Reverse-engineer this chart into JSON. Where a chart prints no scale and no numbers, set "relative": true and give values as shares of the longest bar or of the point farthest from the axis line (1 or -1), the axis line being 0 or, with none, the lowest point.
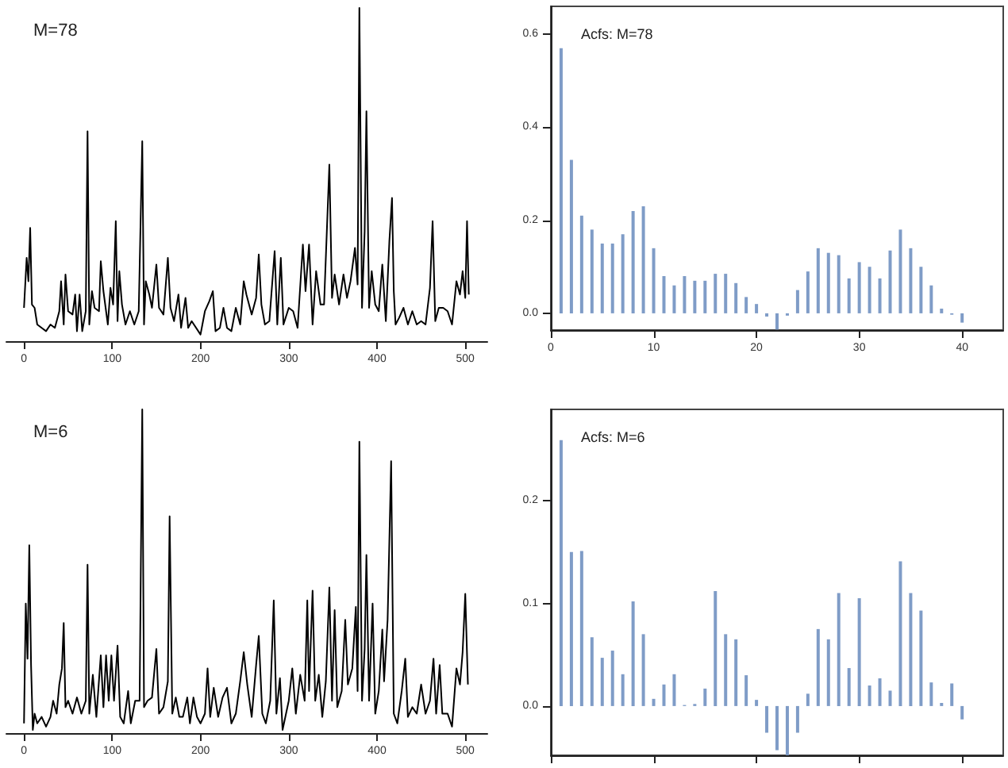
{
  "chart_data": [
    {
      "type": "line",
      "title": "M=78",
      "relative": true,
      "color": "#000000",
      "tick_labels": "x",
      "xlim": [
        -20,
        525
      ],
      "xticks": [
        0,
        100,
        200,
        300,
        400,
        500
      ],
      "x": [
        0,
        3,
        5,
        7,
        9,
        12,
        15,
        20,
        25,
        30,
        35,
        40,
        42,
        45,
        47,
        50,
        55,
        58,
        60,
        63,
        66,
        70,
        72,
        74,
        77,
        80,
        85,
        87,
        90,
        95,
        98,
        101,
        104,
        106,
        108,
        111,
        115,
        120,
        125,
        130,
        134,
        136,
        138,
        142,
        145,
        150,
        153,
        158,
        163,
        166,
        170,
        175,
        178,
        183,
        186,
        190,
        200,
        205,
        210,
        214,
        217,
        222,
        226,
        230,
        235,
        240,
        245,
        249,
        252,
        258,
        263,
        266,
        269,
        273,
        278,
        284,
        287,
        291,
        294,
        300,
        305,
        310,
        316,
        319,
        323,
        327,
        331,
        336,
        340,
        346,
        349,
        352,
        357,
        362,
        366,
        370,
        375,
        378,
        380,
        383,
        386,
        388,
        391,
        394,
        398,
        402,
        406,
        410,
        414,
        417,
        419,
        421,
        425,
        430,
        435,
        440,
        445,
        450,
        455,
        460,
        463,
        466,
        470,
        475,
        480,
        485,
        490,
        494,
        497,
        500,
        502,
        504
      ],
      "values": [
        0.1,
        0.25,
        0.18,
        0.34,
        0.11,
        0.1,
        0.05,
        0.04,
        0.03,
        0.05,
        0.04,
        0.09,
        0.18,
        0.05,
        0.2,
        0.09,
        0.08,
        0.14,
        0.03,
        0.14,
        0.03,
        0.09,
        0.63,
        0.05,
        0.15,
        0.1,
        0.09,
        0.24,
        0.15,
        0.05,
        0.16,
        0.11,
        0.36,
        0.06,
        0.21,
        0.11,
        0.05,
        0.09,
        0.05,
        0.09,
        0.6,
        0.05,
        0.18,
        0.14,
        0.1,
        0.23,
        0.1,
        0.08,
        0.25,
        0.1,
        0.06,
        0.14,
        0.04,
        0.13,
        0.04,
        0.06,
        0.02,
        0.09,
        0.12,
        0.15,
        0.03,
        0.04,
        0.1,
        0.04,
        0.03,
        0.1,
        0.05,
        0.18,
        0.14,
        0.08,
        0.13,
        0.26,
        0.11,
        0.05,
        0.06,
        0.27,
        0.05,
        0.25,
        0.05,
        0.1,
        0.09,
        0.04,
        0.29,
        0.15,
        0.29,
        0.05,
        0.21,
        0.11,
        0.11,
        0.53,
        0.13,
        0.2,
        0.11,
        0.2,
        0.13,
        0.18,
        0.28,
        0.17,
        1,
        0.1,
        0.33,
        0.69,
        0.1,
        0.21,
        0.11,
        0.09,
        0.23,
        0.06,
        0.3,
        0.43,
        0.15,
        0.05,
        0.07,
        0.1,
        0.05,
        0.09,
        0.05,
        0.06,
        0.05,
        0.16,
        0.36,
        0.06,
        0.1,
        0.1,
        0.09,
        0.05,
        0.18,
        0.14,
        0.21,
        0.13,
        0.36,
        0.14
      ]
    },
    {
      "type": "bar",
      "title": "Acfs: M=78",
      "color": "#7f9cc7",
      "xlim": [
        0,
        44
      ],
      "xticks": [
        0,
        10,
        20,
        30,
        40
      ],
      "ylim": [
        -0.036,
        0.66
      ],
      "yticks": [
        {
          "value": 0,
          "label": "0.0"
        },
        0.2,
        0.4,
        0.6
      ],
      "x": [
        1,
        2,
        3,
        4,
        5,
        6,
        7,
        8,
        9,
        10,
        11,
        12,
        13,
        14,
        15,
        16,
        17,
        18,
        19,
        20,
        21,
        22,
        23,
        24,
        25,
        26,
        27,
        28,
        29,
        30,
        31,
        32,
        33,
        34,
        35,
        36,
        37,
        38,
        39,
        40
      ],
      "values": [
        0.57,
        0.33,
        0.21,
        0.18,
        0.15,
        0.15,
        0.17,
        0.22,
        0.23,
        0.14,
        0.08,
        0.06,
        0.08,
        0.07,
        0.07,
        0.085,
        0.085,
        0.065,
        0.035,
        0.02,
        -0.007,
        -0.035,
        -0.005,
        0.05,
        0.09,
        0.14,
        0.13,
        0.125,
        0.075,
        0.11,
        0.1,
        0.075,
        0.135,
        0.18,
        0.14,
        0.1,
        0.06,
        0.01,
        -0.003,
        -0.02
      ]
    },
    {
      "type": "line",
      "title": "M=6",
      "relative": true,
      "color": "#000000",
      "tick_labels": "x",
      "xlim": [
        -20,
        525
      ],
      "xticks": [
        0,
        100,
        200,
        300,
        400,
        500
      ],
      "x": [
        0,
        2,
        4,
        6,
        8,
        10,
        12,
        15,
        20,
        25,
        30,
        33,
        37,
        40,
        43,
        45,
        47,
        50,
        55,
        60,
        65,
        70,
        72,
        74,
        78,
        82,
        87,
        90,
        93,
        96,
        99,
        102,
        106,
        109,
        113,
        118,
        121,
        126,
        131,
        134,
        136,
        140,
        145,
        150,
        153,
        158,
        163,
        165,
        168,
        172,
        176,
        180,
        185,
        188,
        192,
        196,
        200,
        205,
        208,
        211,
        215,
        220,
        225,
        230,
        235,
        240,
        245,
        249,
        253,
        258,
        263,
        266,
        270,
        274,
        279,
        283,
        286,
        290,
        293,
        300,
        304,
        308,
        313,
        318,
        321,
        323,
        327,
        330,
        334,
        338,
        342,
        346,
        349,
        352,
        355,
        360,
        364,
        367,
        372,
        376,
        378,
        380,
        383,
        386,
        388,
        391,
        395,
        398,
        402,
        406,
        408,
        412,
        416,
        419,
        423,
        428,
        432,
        435,
        440,
        445,
        450,
        455,
        460,
        464,
        467,
        471,
        474,
        480,
        485,
        490,
        494,
        497,
        500,
        503
      ],
      "values": [
        0.03,
        0.4,
        0.23,
        0.58,
        0.21,
        0.01,
        0.06,
        0.03,
        0.05,
        0.02,
        0.05,
        0.1,
        0.06,
        0.15,
        0.2,
        0.34,
        0.08,
        0.1,
        0.06,
        0.11,
        0.06,
        0.1,
        0.52,
        0.06,
        0.18,
        0.05,
        0.24,
        0.08,
        0.24,
        0.1,
        0.24,
        0.1,
        0.27,
        0.05,
        0.03,
        0.13,
        0.03,
        0.1,
        0.1,
        1,
        0.08,
        0.1,
        0.11,
        0.26,
        0.06,
        0.08,
        0.16,
        0.67,
        0.06,
        0.11,
        0.05,
        0.05,
        0.11,
        0.03,
        0.11,
        0.05,
        0.03,
        0.06,
        0.2,
        0.05,
        0.14,
        0.05,
        0.11,
        0.14,
        0.03,
        0.06,
        0.16,
        0.25,
        0.15,
        0.05,
        0.21,
        0.3,
        0.06,
        0.03,
        0.1,
        0.41,
        0.06,
        0.17,
        0.01,
        0.1,
        0.2,
        0.06,
        0.18,
        0.1,
        0.41,
        0.13,
        0.44,
        0.1,
        0.18,
        0.05,
        0.16,
        0.45,
        0.1,
        0.38,
        0.08,
        0.13,
        0.35,
        0.15,
        0.2,
        0.39,
        0.13,
        0.9,
        0.1,
        0.26,
        0.55,
        0.1,
        0.4,
        0.06,
        0.13,
        0.32,
        0.16,
        0.35,
        0.84,
        0.06,
        0.03,
        0.13,
        0.23,
        0.05,
        0.08,
        0.06,
        0.15,
        0.06,
        0.1,
        0.23,
        0.06,
        0.21,
        0.06,
        0.06,
        0.02,
        0.2,
        0.15,
        0.25,
        0.43,
        0.15
      ]
    },
    {
      "type": "bar",
      "title": "Acfs: M=6",
      "color": "#7f9cc7",
      "tick_labels": "y",
      "xlim": [
        0,
        44
      ],
      "xticks": [
        0,
        10,
        20,
        30,
        40
      ],
      "ylim": [
        -0.048,
        0.289
      ],
      "yticks": [
        {
          "value": 0,
          "label": "0.0"
        },
        0.1,
        0.2
      ],
      "x": [
        1,
        2,
        3,
        4,
        5,
        6,
        7,
        8,
        9,
        10,
        11,
        12,
        13,
        14,
        15,
        16,
        17,
        18,
        19,
        20,
        21,
        22,
        23,
        24,
        25,
        26,
        27,
        28,
        29,
        30,
        31,
        32,
        33,
        34,
        35,
        36,
        37,
        38,
        39,
        40
      ],
      "values": [
        0.259,
        0.15,
        0.151,
        0.067,
        0.047,
        0.054,
        0.031,
        0.102,
        0.07,
        0.007,
        0.021,
        0.031,
        0.001,
        0.002,
        0.017,
        0.112,
        0.07,
        0.065,
        0.03,
        0.006,
        -0.026,
        -0.043,
        -0.048,
        -0.026,
        0.012,
        0.075,
        0.065,
        0.11,
        0.037,
        0.105,
        0.02,
        0.027,
        0.015,
        0.141,
        0.11,
        0.093,
        0.023,
        0.003,
        0.022,
        -0.013
      ]
    }
  ]
}
